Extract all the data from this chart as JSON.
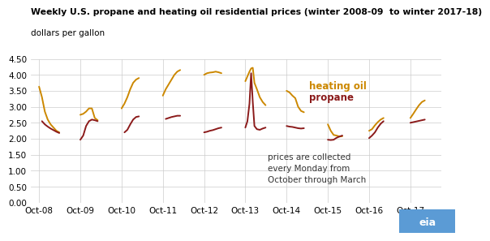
{
  "title": "Weekly U.S. propane and heating oil residential prices (winter 2008-09  to winter 2017-18)",
  "ylabel": "dollars per gallon",
  "heating_oil_color": "#CC8800",
  "propane_color": "#8B1A1A",
  "background_color": "#ffffff",
  "annotation": "prices are collected\nevery Monday from\nOctober through March",
  "ylim": [
    0.0,
    4.5
  ],
  "yticks": [
    0.0,
    0.5,
    1.0,
    1.5,
    2.0,
    2.5,
    3.0,
    3.5,
    4.0,
    4.5
  ],
  "heating_oil_segments": [
    [
      0.0,
      3.63,
      0.07,
      3.3,
      0.14,
      2.85,
      0.21,
      2.6,
      0.28,
      2.45,
      0.35,
      2.35,
      0.42,
      2.25,
      0.49,
      2.2
    ],
    [
      1.0,
      2.75,
      1.07,
      2.78,
      1.14,
      2.85,
      1.21,
      2.95,
      1.28,
      2.95,
      1.35,
      2.65,
      1.42,
      2.58
    ],
    [
      2.0,
      2.95,
      2.07,
      3.1,
      2.14,
      3.3,
      2.21,
      3.55,
      2.28,
      3.75,
      2.35,
      3.85,
      2.42,
      3.9
    ],
    [
      3.0,
      3.35,
      3.07,
      3.55,
      3.14,
      3.7,
      3.21,
      3.85,
      3.28,
      4.0,
      3.35,
      4.1,
      3.42,
      4.15
    ],
    [
      4.0,
      4.0,
      4.07,
      4.05,
      4.14,
      4.07,
      4.21,
      4.08,
      4.28,
      4.1,
      4.35,
      4.08,
      4.42,
      4.05
    ],
    [
      5.0,
      3.8,
      5.05,
      3.95,
      5.1,
      4.1,
      5.14,
      4.2,
      5.18,
      4.22,
      5.22,
      3.75,
      5.28,
      3.55,
      5.35,
      3.3,
      5.42,
      3.15,
      5.49,
      3.05
    ],
    [
      6.0,
      3.5,
      6.07,
      3.45,
      6.14,
      3.35,
      6.21,
      3.27,
      6.28,
      3.0,
      6.35,
      2.87,
      6.42,
      2.83
    ],
    [
      7.0,
      2.45,
      7.07,
      2.25,
      7.14,
      2.12,
      7.21,
      2.1,
      7.28,
      2.07,
      7.35,
      2.08
    ],
    [
      8.0,
      2.25,
      8.07,
      2.3,
      8.14,
      2.42,
      8.21,
      2.52,
      8.28,
      2.6,
      8.35,
      2.65
    ],
    [
      9.0,
      2.65,
      9.07,
      2.78,
      9.14,
      2.92,
      9.21,
      3.05,
      9.28,
      3.15,
      9.35,
      3.2
    ]
  ],
  "propane_segments": [
    [
      0.07,
      2.55,
      0.14,
      2.45,
      0.21,
      2.38,
      0.28,
      2.32,
      0.35,
      2.27,
      0.42,
      2.22,
      0.49,
      2.18
    ],
    [
      1.0,
      1.97,
      1.07,
      2.1,
      1.14,
      2.4,
      1.21,
      2.55,
      1.28,
      2.6,
      1.35,
      2.58,
      1.42,
      2.55
    ],
    [
      2.07,
      2.2,
      2.14,
      2.28,
      2.21,
      2.45,
      2.28,
      2.6,
      2.35,
      2.68,
      2.42,
      2.7
    ],
    [
      3.07,
      2.62,
      3.14,
      2.65,
      3.21,
      2.68,
      3.28,
      2.7,
      3.35,
      2.72,
      3.42,
      2.72
    ],
    [
      4.0,
      2.2,
      4.07,
      2.22,
      4.14,
      2.25,
      4.21,
      2.27,
      4.28,
      2.3,
      4.35,
      2.33,
      4.42,
      2.35
    ],
    [
      5.0,
      2.35,
      5.05,
      2.55,
      5.1,
      3.1,
      5.14,
      4.05,
      5.18,
      3.15,
      5.22,
      2.4,
      5.28,
      2.3,
      5.35,
      2.28,
      5.42,
      2.32,
      5.49,
      2.35
    ],
    [
      6.0,
      2.4,
      6.07,
      2.38,
      6.14,
      2.37,
      6.21,
      2.35,
      6.28,
      2.33,
      6.35,
      2.32,
      6.42,
      2.33
    ],
    [
      7.0,
      1.97,
      7.07,
      1.96,
      7.14,
      1.97,
      7.21,
      2.03,
      7.28,
      2.07,
      7.35,
      2.1
    ],
    [
      8.0,
      2.02,
      8.07,
      2.1,
      8.14,
      2.2,
      8.21,
      2.35,
      8.28,
      2.47,
      8.35,
      2.55
    ],
    [
      9.0,
      2.5,
      9.07,
      2.52,
      9.14,
      2.54,
      9.21,
      2.56,
      9.28,
      2.58,
      9.35,
      2.6
    ]
  ],
  "xtick_positions": [
    0,
    1,
    2,
    3,
    4,
    5,
    6,
    7,
    8,
    9
  ],
  "xtick_labels": [
    "Oct-08",
    "Oct-09",
    "Oct-10",
    "Oct-11",
    "Oct-12",
    "Oct-13",
    "Oct-14",
    "Oct-15",
    "Oct-16",
    "Oct-17"
  ]
}
